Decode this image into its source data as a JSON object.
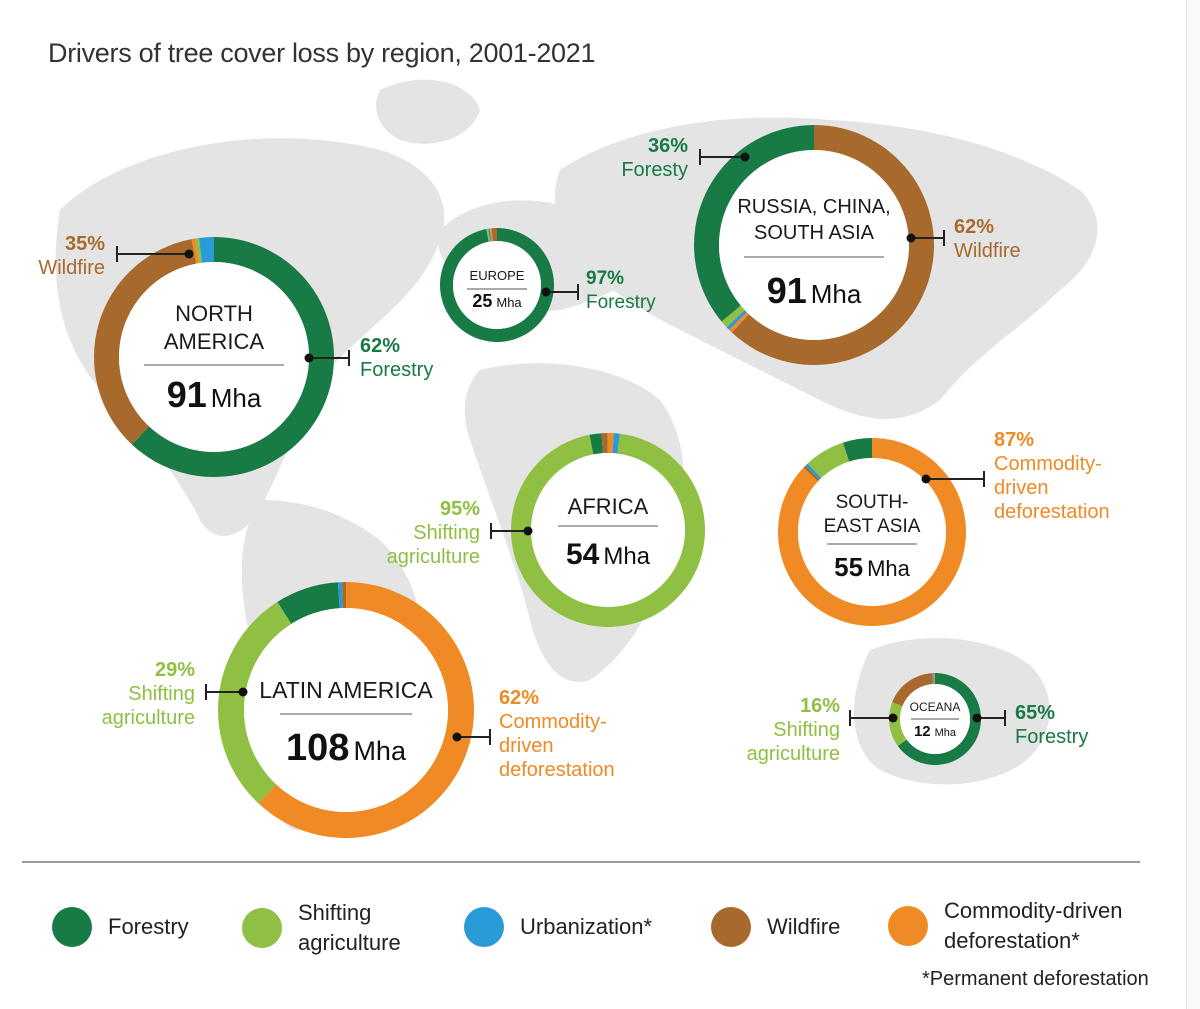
{
  "title": "Drivers of tree cover loss by region, 2001-2021",
  "colors": {
    "forestry": "#187a45",
    "shifting_agriculture": "#8fc043",
    "urbanization": "#2a9bd6",
    "wildfire": "#a86a2c",
    "commodity": "#ef8a25",
    "map": "#e4e4e4"
  },
  "chart_data": {
    "type": "pie",
    "variant": "donut",
    "categories": [
      "Forestry",
      "Shifting agriculture",
      "Urbanization*",
      "Wildfire",
      "Commodity-driven deforestation*"
    ],
    "regions": [
      {
        "key": "north_america",
        "name_lines": [
          "NORTH",
          "AMERICA"
        ],
        "total": "91",
        "unit": "Mha",
        "shares": {
          "forestry": 62,
          "shifting_agriculture": 0.5,
          "urbanization": 2,
          "wildfire": 35,
          "commodity": 0.5
        },
        "callouts": [
          {
            "pct": "62%",
            "lines": [
              "Forestry"
            ],
            "driver": "forestry"
          },
          {
            "pct": "35%",
            "lines": [
              "Wildfire"
            ],
            "driver": "wildfire"
          }
        ]
      },
      {
        "key": "europe",
        "name_lines": [
          "EUROPE"
        ],
        "total": "25",
        "unit": "Mha",
        "shares": {
          "forestry": 97,
          "shifting_agriculture": 0.5,
          "urbanization": 0.5,
          "wildfire": 1.5,
          "commodity": 0.5
        },
        "callouts": [
          {
            "pct": "97%",
            "lines": [
              "Forestry"
            ],
            "driver": "forestry"
          }
        ]
      },
      {
        "key": "russia_china_south_asia",
        "name_lines": [
          "RUSSIA, CHINA,",
          "SOUTH ASIA"
        ],
        "total": "91",
        "unit": "Mha",
        "shares": {
          "forestry": 36,
          "shifting_agriculture": 1,
          "urbanization": 0.5,
          "wildfire": 62,
          "commodity": 0.5
        },
        "callouts": [
          {
            "pct": "36%",
            "lines": [
              "Foresty"
            ],
            "driver": "forestry"
          },
          {
            "pct": "62%",
            "lines": [
              "Wildfire"
            ],
            "driver": "wildfire"
          }
        ]
      },
      {
        "key": "africa",
        "name_lines": [
          "AFRICA"
        ],
        "total": "54",
        "unit": "Mha",
        "shares": {
          "forestry": 2,
          "shifting_agriculture": 95,
          "urbanization": 1,
          "wildfire": 1,
          "commodity": 1
        },
        "callouts": [
          {
            "pct": "95%",
            "lines": [
              "Shifting",
              "agriculture"
            ],
            "driver": "shifting_agriculture"
          }
        ]
      },
      {
        "key": "southeast_asia",
        "name_lines": [
          "SOUTH-",
          "EAST ASIA"
        ],
        "total": "55",
        "unit": "Mha",
        "shares": {
          "forestry": 5,
          "shifting_agriculture": 7,
          "urbanization": 0.5,
          "wildfire": 0.5,
          "commodity": 87
        },
        "callouts": [
          {
            "pct": "87%",
            "lines": [
              "Commodity-",
              "driven",
              "deforestation"
            ],
            "driver": "commodity"
          }
        ]
      },
      {
        "key": "latin_america",
        "name_lines": [
          "LATIN AMERICA"
        ],
        "total": "108",
        "unit": "Mha",
        "shares": {
          "forestry": 8,
          "shifting_agriculture": 29,
          "urbanization": 0.5,
          "wildfire": 0.5,
          "commodity": 62
        },
        "callouts": [
          {
            "pct": "29%",
            "lines": [
              "Shifting",
              "agriculture"
            ],
            "driver": "shifting_agriculture"
          },
          {
            "pct": "62%",
            "lines": [
              "Commodity-",
              "driven",
              "deforestation"
            ],
            "driver": "commodity"
          }
        ]
      },
      {
        "key": "oceania",
        "name_lines": [
          "OCEANA"
        ],
        "total": "12",
        "unit": "Mha",
        "shares": {
          "forestry": 65,
          "shifting_agriculture": 16,
          "urbanization": 0.5,
          "wildfire": 18,
          "commodity": 0.5
        },
        "callouts": [
          {
            "pct": "16%",
            "lines": [
              "Shifting",
              "agriculture"
            ],
            "driver": "shifting_agriculture"
          },
          {
            "pct": "65%",
            "lines": [
              "Forestry"
            ],
            "driver": "forestry"
          }
        ]
      }
    ],
    "legend": [
      {
        "driver": "forestry",
        "label": "Forestry"
      },
      {
        "driver": "shifting_agriculture",
        "label": "Shifting\nagriculture"
      },
      {
        "driver": "urbanization",
        "label": "Urbanization*"
      },
      {
        "driver": "wildfire",
        "label": "Wildfire"
      },
      {
        "driver": "commodity",
        "label": "Commodity-driven\ndeforestation*"
      }
    ],
    "legend_placement": "bottom",
    "footnote": "*Permanent deforestation"
  }
}
